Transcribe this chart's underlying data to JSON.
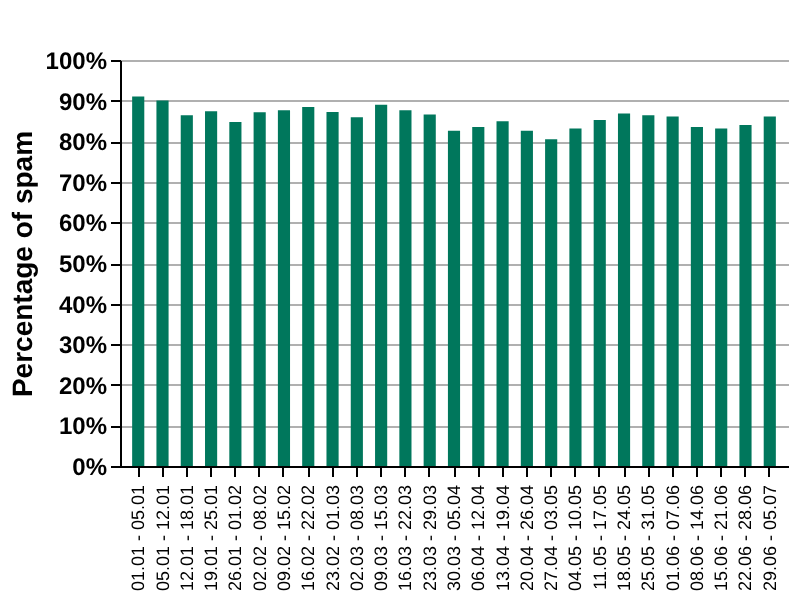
{
  "chart_data": {
    "type": "bar",
    "ylabel": "Percentage of spam",
    "categories": [
      "01.01 - 05.01",
      "05.01 - 12.01",
      "12.01 - 18.01",
      "19.01 - 25.01",
      "26.01 - 01.02",
      "02.02 - 08.02",
      "09.02 - 15.02",
      "16.02 - 22.02",
      "23.02 - 01.03",
      "02.03 - 08.03",
      "09.03 - 15.03",
      "16.03 - 22.03",
      "23.03 - 29.03",
      "30.03 - 05.04",
      "06.04 - 12.04",
      "13.04 - 19.04",
      "20.04 - 26.04",
      "27.04 - 03.05",
      "04.05 - 10.05",
      "11.05 - 17.05",
      "18.05 - 24.05",
      "25.05 - 31.05",
      "01.06 - 07.06",
      "08.06 - 14.06",
      "15.06 - 21.06",
      "22.06 - 28.06",
      "29.06 - 05.07"
    ],
    "values": [
      91.0,
      90.0,
      86.4,
      87.4,
      84.7,
      87.1,
      87.6,
      88.4,
      87.2,
      85.9,
      89.0,
      87.6,
      86.6,
      82.6,
      83.5,
      84.9,
      82.6,
      80.5,
      83.1,
      85.2,
      86.8,
      86.4,
      86.1,
      83.5,
      83.1,
      84.0,
      86.1
    ],
    "color": "#00775c",
    "ylim": [
      0,
      100
    ],
    "yticks": [
      {
        "value": 0,
        "label": "0%"
      },
      {
        "value": 10,
        "label": "10%"
      },
      {
        "value": 20,
        "label": "20%"
      },
      {
        "value": 30,
        "label": "30%"
      },
      {
        "value": 40,
        "label": "40%"
      },
      {
        "value": 50,
        "label": "50%"
      },
      {
        "value": 60,
        "label": "60%"
      },
      {
        "value": 70,
        "label": "70%"
      },
      {
        "value": 80,
        "label": "80%"
      },
      {
        "value": 90,
        "label": "90%"
      },
      {
        "value": 100,
        "label": "100%"
      }
    ],
    "grid": "y"
  }
}
